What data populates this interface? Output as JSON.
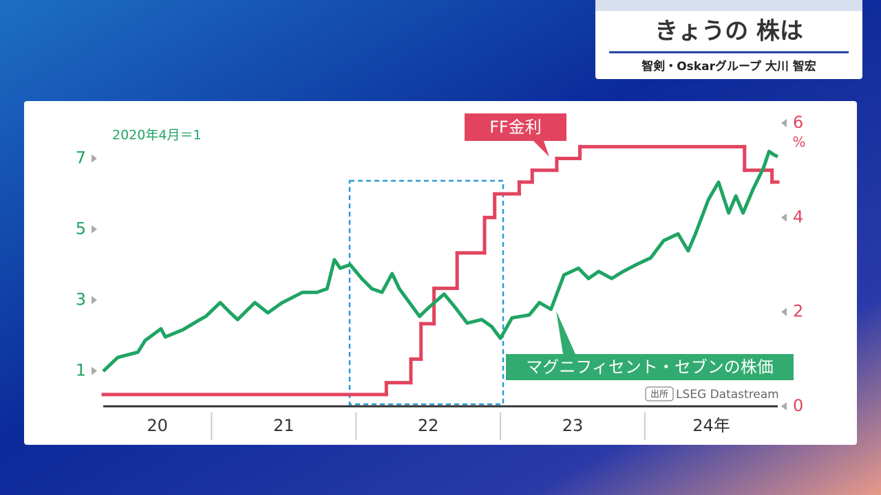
{
  "header": {
    "title": "きょうの 株は",
    "subtitle": "智剣・Oskarグループ 大川 智宏"
  },
  "chart_data": {
    "type": "line",
    "note": "2020年4月＝1",
    "y2_unit": "%",
    "source_tag": "出所",
    "source": "LSEG Datastream",
    "xlim": [
      2020.25,
      2024.92
    ],
    "xticks": [
      {
        "value": 2020.25,
        "label": "20"
      },
      {
        "value": 2021,
        "label": "21"
      },
      {
        "value": 2022,
        "label": "22"
      },
      {
        "value": 2023,
        "label": "23"
      },
      {
        "value": 2024,
        "label": "24年"
      }
    ],
    "ylim": [
      0,
      8
    ],
    "yticks": [
      1,
      3,
      5,
      7
    ],
    "y2lim": [
      0,
      6
    ],
    "y2ticks": [
      0,
      2,
      4,
      6
    ],
    "series": [
      {
        "name": "マグニフィセント・セブンの株価",
        "color": "#1fa463",
        "axis": "y",
        "x": [
          2020.25,
          2020.35,
          2020.49,
          2020.54,
          2020.65,
          2020.68,
          2020.8,
          2020.92,
          2020.96,
          2021.06,
          2021.13,
          2021.18,
          2021.3,
          2021.39,
          2021.49,
          2021.63,
          2021.73,
          2021.8,
          2021.85,
          2021.89,
          2021.96,
          2022.04,
          2022.11,
          2022.18,
          2022.25,
          2022.3,
          2022.37,
          2022.44,
          2022.49,
          2022.61,
          2022.68,
          2022.77,
          2022.87,
          2022.94,
          2023.0,
          2023.08,
          2023.2,
          2023.27,
          2023.35,
          2023.44,
          2023.54,
          2023.61,
          2023.68,
          2023.77,
          2023.85,
          2023.94,
          2024.04,
          2024.13,
          2024.23,
          2024.3,
          2024.35,
          2024.44,
          2024.51,
          2024.58,
          2024.63,
          2024.68,
          2024.75,
          2024.82,
          2024.86,
          2024.89,
          2024.92
        ],
        "values": [
          0.99,
          1.38,
          1.53,
          1.86,
          2.19,
          1.96,
          2.16,
          2.45,
          2.54,
          2.93,
          2.64,
          2.45,
          2.93,
          2.64,
          2.93,
          3.22,
          3.22,
          3.32,
          4.14,
          3.9,
          4.0,
          3.61,
          3.32,
          3.22,
          3.75,
          3.32,
          2.93,
          2.54,
          2.74,
          3.17,
          2.83,
          2.35,
          2.45,
          2.25,
          1.92,
          2.5,
          2.58,
          2.93,
          2.74,
          3.71,
          3.9,
          3.61,
          3.81,
          3.61,
          3.81,
          4.0,
          4.19,
          4.68,
          4.87,
          4.39,
          4.87,
          5.84,
          6.33,
          5.46,
          5.94,
          5.46,
          6.14,
          6.72,
          7.2,
          7.11,
          7.05
        ]
      },
      {
        "name": "FF金利",
        "color": "#e2445f",
        "axis": "y2",
        "step": true,
        "x": [
          2020.25,
          2022.21,
          2022.38,
          2022.45,
          2022.54,
          2022.7,
          2022.89,
          2022.96,
          2023.13,
          2023.22,
          2023.39,
          2023.55,
          2024.69,
          2024.88
        ],
        "values": [
          0.25,
          0.5,
          1,
          1.75,
          2.5,
          3.25,
          4,
          4.5,
          4.75,
          5,
          5.25,
          5.5,
          5,
          4.75
        ]
      }
    ]
  }
}
